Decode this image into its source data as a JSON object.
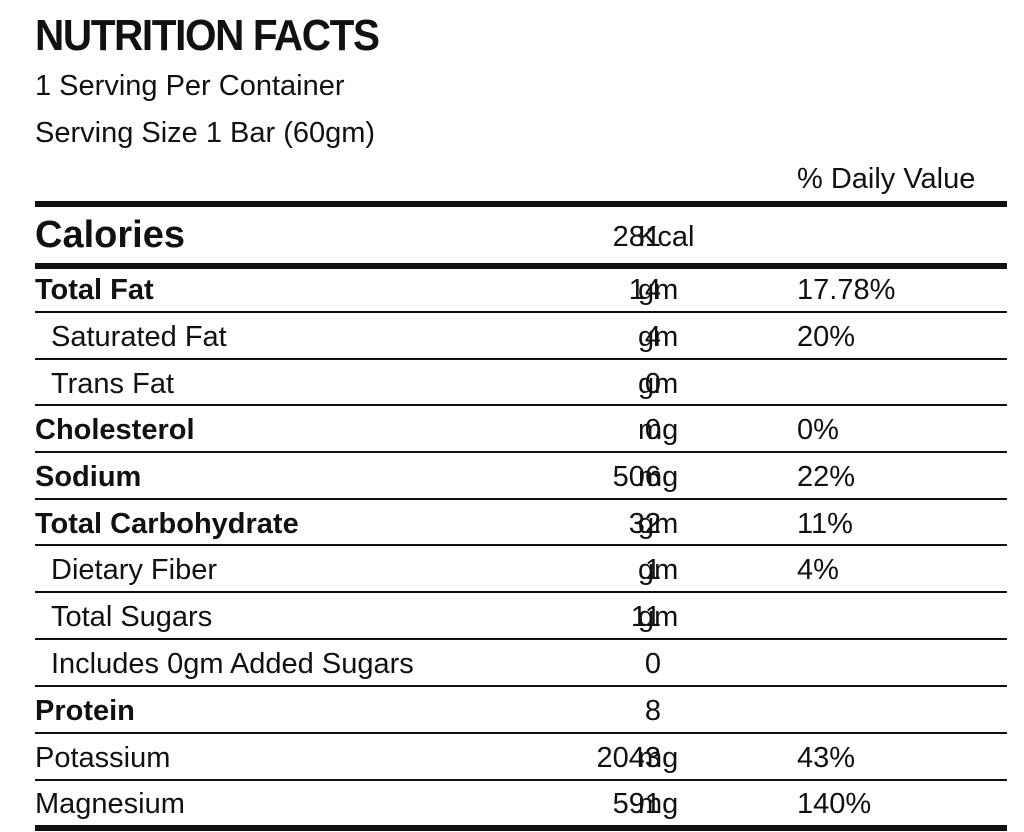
{
  "label": {
    "title": "NUTRITION FACTS",
    "servings_per_container": "1 Serving Per Container",
    "serving_size": "Serving Size 1 Bar (60gm)",
    "daily_value_header": "% Daily Value",
    "calories": {
      "name": "Calories",
      "amount": "281",
      "unit": "Kcal"
    },
    "rows": [
      {
        "name": "Total Fat",
        "amount": "14",
        "unit": "gm",
        "dv": "17.78%"
      },
      {
        "name": "Saturated Fat",
        "amount": "4",
        "unit": "gm",
        "dv": "20%"
      },
      {
        "name": "Trans Fat",
        "amount": "0",
        "unit": "gm",
        "dv": ""
      },
      {
        "name": "Cholesterol",
        "amount": "0",
        "unit": "mg",
        "dv": "0%"
      },
      {
        "name": "Sodium",
        "amount": "506",
        "unit": "mg",
        "dv": "22%"
      },
      {
        "name": "Total Carbohydrate",
        "amount": "32",
        "unit": "gm",
        "dv": "11%"
      },
      {
        "name": "Dietary Fiber",
        "amount": "1",
        "unit": "gm",
        "dv": "4%"
      },
      {
        "name": "Total Sugars",
        "amount": "11",
        "unit": "gm",
        "dv": ""
      },
      {
        "name": "Includes 0gm Added Sugars",
        "amount": "0",
        "unit": "",
        "dv": ""
      },
      {
        "name": "Protein",
        "amount": "8",
        "unit": "",
        "dv": ""
      },
      {
        "name": "Potassium",
        "amount": "2043",
        "unit": "mg",
        "dv": "43%"
      },
      {
        "name": "Magnesium",
        "amount": "591",
        "unit": "mg",
        "dv": "140%"
      }
    ]
  }
}
